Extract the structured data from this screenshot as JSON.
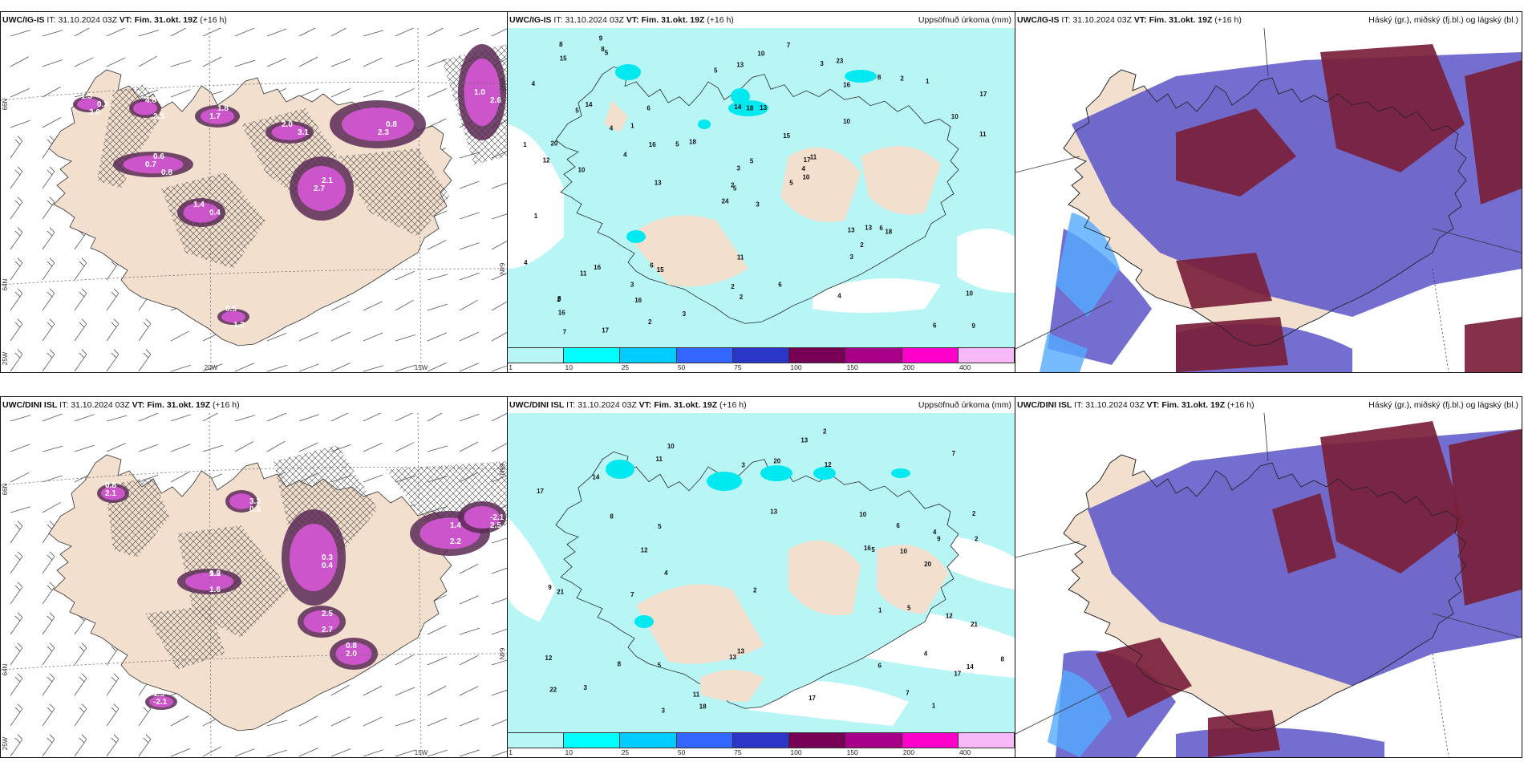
{
  "panels": [
    {
      "model": "UWC/IG-IS",
      "it_label": "IT:",
      "it_value": "31.10.2024 03Z",
      "vt_label": "VT:",
      "vt_value": "Fim. 31.okt. 19Z",
      "lead": "(+16 h)",
      "title_right": "",
      "axis_labels": [
        "66N",
        "64N",
        "25W",
        "20W",
        "15W",
        "66N",
        "64N"
      ],
      "contour_values": [
        "1.5",
        "0.6",
        "0.4",
        "2.7",
        "2.3",
        "2.6",
        "0.5",
        "4.8",
        "3.1",
        "1.7",
        "2.0",
        "0.8",
        "1.4",
        "2.1",
        "0.8",
        "1.0",
        "1.2",
        "2.5",
        "2.0",
        "1.8",
        "0.3",
        "0.7"
      ]
    },
    {
      "model": "UWC/IG-IS",
      "it_label": "IT:",
      "it_value": "31.10.2024 03Z",
      "vt_label": "VT:",
      "vt_value": "Fim. 31.okt. 19Z",
      "lead": "(+16 h)",
      "title_right": "Uppsöfnuð úrkoma (mm)",
      "station_values": [
        "3",
        "5",
        "5",
        "8",
        "17",
        "15",
        "23",
        "13",
        "16",
        "5",
        "5",
        "9",
        "10",
        "17",
        "24",
        "10",
        "17",
        "14",
        "15",
        "16",
        "18",
        "16",
        "16",
        "18",
        "11",
        "18",
        "14",
        "13",
        "12",
        "13",
        "11",
        "2",
        "2",
        "3",
        "6",
        "8",
        "6",
        "6",
        "10",
        "6",
        "7",
        "5",
        "4",
        "3",
        "2",
        "1",
        "4",
        "7",
        "2",
        "10",
        "11",
        "10",
        "4",
        "2",
        "4",
        "3",
        "8",
        "8",
        "6",
        "1",
        "10",
        "13",
        "20",
        "1",
        "2",
        "9",
        "3",
        "5",
        "5",
        "4",
        "11",
        "3",
        "13",
        "16",
        "2",
        "15",
        "4",
        "1"
      ]
    },
    {
      "model": "UWC/IG-IS",
      "it_label": "IT:",
      "it_value": "31.10.2024 03Z",
      "vt_label": "VT:",
      "vt_value": "Fim. 31.okt. 19Z",
      "lead": "(+16 h)",
      "title_right": "Háský (gr.), miðský (fj.bl.) og lágský (bl.)"
    },
    {
      "model": "UWC/DINI ISL",
      "it_label": "IT:",
      "it_value": "31.10.2024 03Z",
      "vt_label": "VT:",
      "vt_value": "Fim. 31.okt. 19Z",
      "lead": "(+16 h)",
      "title_right": "",
      "axis_labels": [
        "66N",
        "64N",
        "25W",
        "15W",
        "66N",
        "64N"
      ],
      "contour_values": [
        "0.8",
        "0.9",
        "0.3",
        "2.0",
        "2.2",
        "2.5",
        "1.5",
        "2.5",
        "3.3",
        "2.1",
        "1.6",
        "0.4",
        "0.8",
        "1.4",
        "-2.1",
        "-2.1",
        "2.7",
        "0.5",
        "0.8",
        "1.2"
      ]
    },
    {
      "model": "UWC/DINI ISL",
      "it_label": "IT:",
      "it_value": "31.10.2024 03Z",
      "vt_label": "VT:",
      "vt_value": "Fim. 31.okt. 19Z",
      "lead": "(+16 h)",
      "title_right": "Uppsöfnuð úrkoma (mm)",
      "station_values": [
        "4",
        "2",
        "14",
        "13",
        "22",
        "10",
        "4",
        "5",
        "7",
        "8",
        "2",
        "17",
        "20",
        "18",
        "12",
        "14",
        "17",
        "11",
        "13",
        "9",
        "9",
        "21",
        "17",
        "16",
        "11",
        "13",
        "13",
        "12",
        "10",
        "8",
        "7",
        "6",
        "3",
        "2",
        "12",
        "7",
        "5",
        "3",
        "1",
        "4",
        "5",
        "10",
        "20",
        "12",
        "21",
        "1",
        "3",
        "2",
        "5",
        "6",
        "8"
      ]
    },
    {
      "model": "UWC/DINI ISL",
      "it_label": "IT:",
      "it_value": "31.10.2024 03Z",
      "vt_label": "VT:",
      "vt_value": "Fim. 31.okt. 19Z",
      "lead": "(+16 h)",
      "title_right": "Háský (gr.), miðský (fj.bl.) og lágský (bl.)"
    }
  ],
  "precip_legend": {
    "ticks": [
      "1",
      "10",
      "25",
      "50",
      "75",
      "100",
      "150",
      "200",
      "400"
    ],
    "colors": [
      "#b8f6f6",
      "#00ffff",
      "#00ccff",
      "#3366ff",
      "#2b35c8",
      "#770055",
      "#a60088",
      "#ff00cc",
      "#f6b8f6"
    ]
  },
  "colors": {
    "land": "#f2dfcd",
    "sea_precip": "#b8f6f6",
    "hatch": "#444444",
    "icing_purple": "#cc55cc",
    "icing_dark": "#5a2a55",
    "cloud_high": "#7a1f3a",
    "cloud_mid": "#5a55c8",
    "cloud_low": "#55aaff"
  }
}
